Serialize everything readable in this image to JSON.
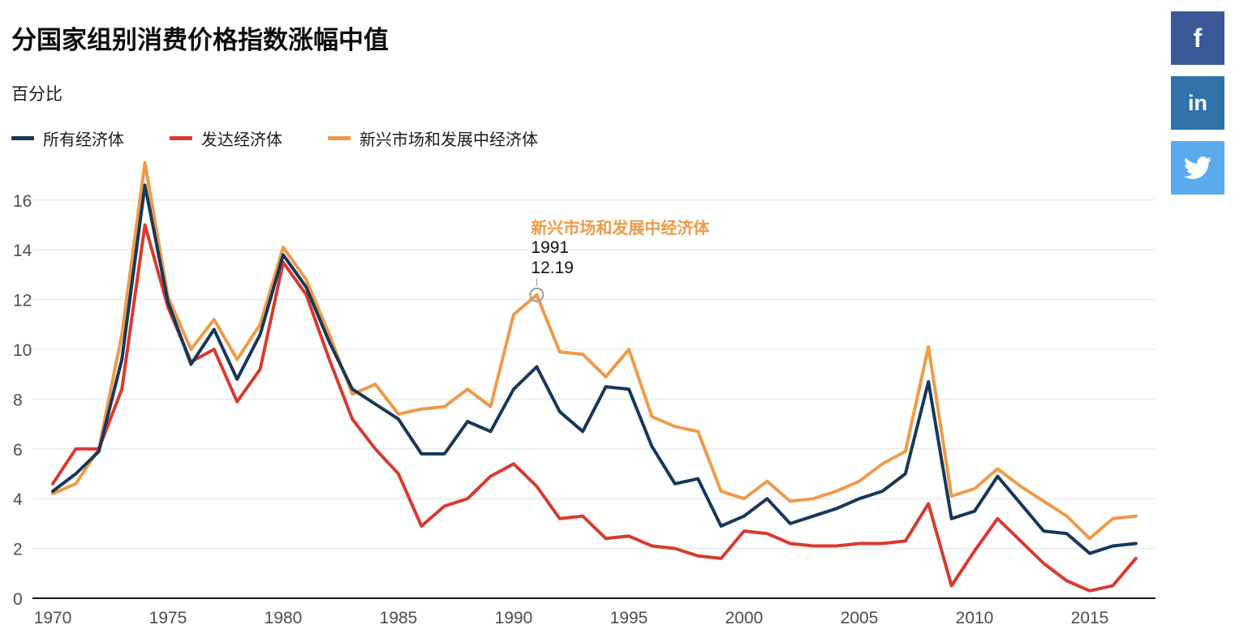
{
  "header": {
    "title": "分国家组别消费价格指数涨幅中值",
    "subtitle": "百分比"
  },
  "legend": [
    {
      "label": "所有经济体",
      "color": "#17375a"
    },
    {
      "label": "发达经济体",
      "color": "#d93a2f"
    },
    {
      "label": "新兴市场和发展中经济体",
      "color": "#ef9a49"
    }
  ],
  "social": [
    {
      "name": "facebook",
      "glyph": "f",
      "color": "#3b5998"
    },
    {
      "name": "linkedin",
      "glyph": "in",
      "color": "#2f72ac"
    },
    {
      "name": "twitter",
      "glyph": "",
      "color": "#5aabee"
    }
  ],
  "annotation": {
    "series": "新兴市场和发展中经济体",
    "year": 1991,
    "value": 12.19,
    "value_display": "12.19",
    "color": "#ef9a49"
  },
  "chart_data": {
    "type": "line",
    "title": "分国家组别消费价格指数涨幅中值",
    "ylabel": "百分比",
    "grid": true,
    "legend_position": "top-left",
    "ylim": [
      0,
      17.8
    ],
    "yticks": [
      0,
      2,
      4,
      6,
      8,
      10,
      12,
      14,
      16
    ],
    "xticks": [
      1970,
      1975,
      1980,
      1985,
      1990,
      1995,
      2000,
      2005,
      2010,
      2015
    ],
    "x": [
      1970,
      1971,
      1972,
      1973,
      1974,
      1975,
      1976,
      1977,
      1978,
      1979,
      1980,
      1981,
      1982,
      1983,
      1984,
      1985,
      1986,
      1987,
      1988,
      1989,
      1990,
      1991,
      1992,
      1993,
      1994,
      1995,
      1996,
      1997,
      1998,
      1999,
      2000,
      2001,
      2002,
      2003,
      2004,
      2005,
      2006,
      2007,
      2008,
      2009,
      2010,
      2011,
      2012,
      2013,
      2014,
      2015,
      2016,
      2017
    ],
    "series": [
      {
        "name": "所有经济体",
        "color": "#17375a",
        "values": [
          4.3,
          5.0,
          5.9,
          9.6,
          16.6,
          11.9,
          9.4,
          10.8,
          8.8,
          10.6,
          13.8,
          12.5,
          10.3,
          8.4,
          7.8,
          7.2,
          5.8,
          5.8,
          7.1,
          6.7,
          8.4,
          9.3,
          7.5,
          6.7,
          8.5,
          8.4,
          6.1,
          4.6,
          4.8,
          2.9,
          3.3,
          4.0,
          3.0,
          3.3,
          3.6,
          4.0,
          4.3,
          5.0,
          8.7,
          3.2,
          3.5,
          4.9,
          3.8,
          2.7,
          2.6,
          1.8,
          2.1,
          2.2
        ]
      },
      {
        "name": "发达经济体",
        "color": "#d93a2f",
        "values": [
          4.6,
          6.0,
          6.0,
          8.4,
          15.0,
          11.7,
          9.5,
          10.0,
          7.9,
          9.2,
          13.5,
          12.2,
          9.6,
          7.2,
          6.0,
          5.0,
          2.9,
          3.7,
          4.0,
          4.9,
          5.4,
          4.5,
          3.2,
          3.3,
          2.4,
          2.5,
          2.1,
          2.0,
          1.7,
          1.6,
          2.7,
          2.6,
          2.2,
          2.1,
          2.1,
          2.2,
          2.2,
          2.3,
          3.8,
          0.5,
          1.9,
          3.2,
          2.3,
          1.4,
          0.7,
          0.3,
          0.5,
          1.6
        ]
      },
      {
        "name": "新兴市场和发展中经济体",
        "color": "#ef9a49",
        "values": [
          4.2,
          4.6,
          6.0,
          10.6,
          17.5,
          12.1,
          10.0,
          11.2,
          9.6,
          11.0,
          14.1,
          12.8,
          10.6,
          8.2,
          8.6,
          7.4,
          7.6,
          7.7,
          8.4,
          7.7,
          11.4,
          12.19,
          9.9,
          9.8,
          8.9,
          10.0,
          7.3,
          6.9,
          6.7,
          4.3,
          4.0,
          4.7,
          3.9,
          4.0,
          4.3,
          4.7,
          5.4,
          5.9,
          10.1,
          4.1,
          4.4,
          5.2,
          4.5,
          3.9,
          3.3,
          2.4,
          3.2,
          3.3
        ]
      }
    ]
  }
}
